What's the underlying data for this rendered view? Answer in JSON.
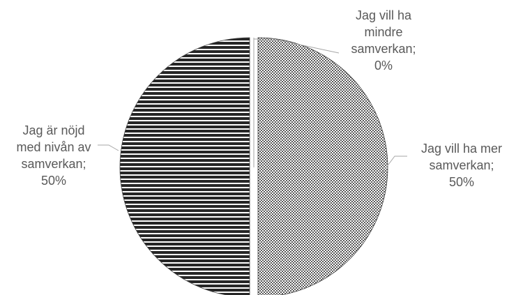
{
  "chart_data": {
    "type": "pie",
    "title": "",
    "slices": [
      {
        "name": "Jag vill ha mer samverkan",
        "value": 50,
        "label_lines": [
          "Jag vill ha mer",
          "samverkan;",
          "50%"
        ],
        "pattern": "dots",
        "colors": {
          "fill": "#ffffff",
          "ink": "#595959",
          "edge": "#404040"
        }
      },
      {
        "name": "Jag är nöjd med nivån av samverkan",
        "value": 50,
        "label_lines": [
          "Jag är nöjd",
          "med nivån av",
          "samverkan;",
          "50%"
        ],
        "pattern": "stripes",
        "colors": {
          "fill": "#ffffff",
          "ink": "#262626",
          "edge": "#404040"
        }
      },
      {
        "name": "Jag vill ha mindre samverkan",
        "value": 0,
        "label_lines": [
          "Jag vill ha",
          "mindre",
          "samverkan;",
          "0%"
        ],
        "pattern": "none",
        "colors": {
          "fill": "#ffffff",
          "ink": "#a6a6a6",
          "edge": "#a6a6a6"
        }
      }
    ],
    "legend": "none"
  }
}
